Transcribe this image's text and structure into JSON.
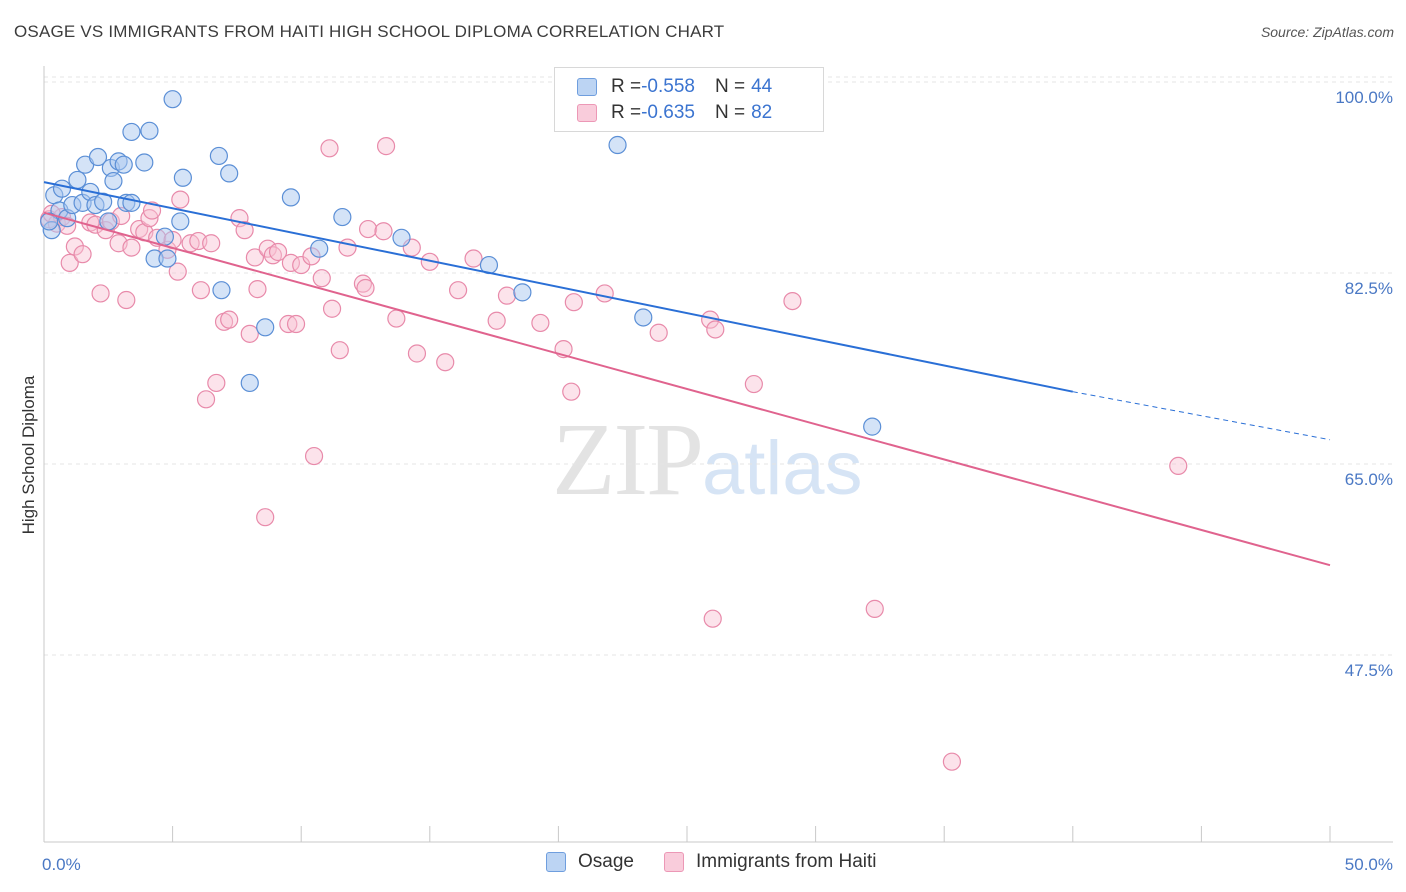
{
  "title": "OSAGE VS IMMIGRANTS FROM HAITI HIGH SCHOOL DIPLOMA CORRELATION CHART",
  "source": "Source: ZipAtlas.com",
  "watermark": {
    "zip": "ZIP",
    "atlas": "atlas"
  },
  "legend": {
    "rows": [
      {
        "r_label": "R = ",
        "r_value": "-0.558",
        "n_label": "N = ",
        "n_value": "44"
      },
      {
        "r_label": "R = ",
        "r_value": "-0.635",
        "n_label": "N = ",
        "n_value": "82"
      }
    ],
    "bottom": [
      "Osage",
      "Immigrants from Haiti"
    ]
  },
  "colors": {
    "osage_fill": "#a9c8f0",
    "osage_stroke": "#5b8fd6",
    "osage_line": "#2a6fd6",
    "haiti_fill": "#f8c0d2",
    "haiti_stroke": "#e88aaa",
    "haiti_line": "#e0638e",
    "tick_label": "#4a78c4"
  },
  "chart_data": {
    "type": "scatter",
    "title": "OSAGE VS IMMIGRANTS FROM HAITI HIGH SCHOOL DIPLOMA CORRELATION CHART",
    "xlabel": "",
    "ylabel": "High School Diploma",
    "xlim": [
      0,
      50
    ],
    "ylim": [
      30,
      100
    ],
    "x_tick_labels": [
      "0.0%",
      "50.0%"
    ],
    "y_ticks": [
      47.5,
      65.0,
      82.5,
      100.0
    ],
    "y_tick_labels": [
      "47.5%",
      "65.0%",
      "82.5%",
      "100.0%"
    ],
    "grid": "horizontal dashed",
    "legend_position": "top-center",
    "series": [
      {
        "name": "Osage",
        "r": -0.558,
        "n": 44,
        "trend": {
          "x": [
            0,
            40
          ],
          "y": [
            92.2,
            73.0
          ],
          "dashed_to": [
            50,
            68.6
          ]
        },
        "points": [
          [
            0.3,
            87.8
          ],
          [
            0.4,
            91.0
          ],
          [
            0.6,
            89.6
          ],
          [
            0.7,
            91.6
          ],
          [
            0.9,
            88.9
          ],
          [
            1.1,
            90.1
          ],
          [
            1.3,
            92.4
          ],
          [
            1.5,
            90.3
          ],
          [
            1.6,
            93.8
          ],
          [
            1.8,
            91.3
          ],
          [
            2.0,
            90.1
          ],
          [
            2.1,
            94.5
          ],
          [
            2.3,
            90.4
          ],
          [
            2.5,
            88.6
          ],
          [
            2.6,
            93.5
          ],
          [
            2.7,
            92.3
          ],
          [
            2.9,
            94.1
          ],
          [
            3.1,
            93.8
          ],
          [
            3.2,
            90.3
          ],
          [
            3.4,
            90.3
          ],
          [
            3.4,
            96.8
          ],
          [
            3.9,
            94.0
          ],
          [
            4.1,
            96.9
          ],
          [
            4.3,
            85.2
          ],
          [
            4.7,
            87.2
          ],
          [
            4.8,
            85.2
          ],
          [
            5.0,
            99.8
          ],
          [
            5.3,
            88.6
          ],
          [
            5.4,
            92.6
          ],
          [
            6.8,
            94.6
          ],
          [
            6.9,
            82.3
          ],
          [
            7.2,
            93.0
          ],
          [
            8.6,
            78.9
          ],
          [
            8.0,
            73.8
          ],
          [
            9.6,
            90.8
          ],
          [
            10.7,
            86.1
          ],
          [
            11.6,
            89.0
          ],
          [
            13.9,
            87.1
          ],
          [
            17.3,
            84.6
          ],
          [
            18.6,
            82.1
          ],
          [
            22.3,
            95.6
          ],
          [
            23.3,
            79.8
          ],
          [
            32.2,
            69.8
          ],
          [
            0.2,
            88.6
          ]
        ]
      },
      {
        "name": "Immigrants from Haiti",
        "r": -0.635,
        "n": 82,
        "trend": {
          "x": [
            0,
            50
          ],
          "y": [
            89.4,
            57.1
          ]
        },
        "points": [
          [
            0.2,
            88.8
          ],
          [
            0.5,
            88.4
          ],
          [
            0.7,
            89.0
          ],
          [
            0.9,
            88.2
          ],
          [
            1.0,
            84.8
          ],
          [
            1.2,
            86.3
          ],
          [
            1.5,
            85.6
          ],
          [
            1.8,
            88.5
          ],
          [
            2.0,
            88.3
          ],
          [
            2.2,
            82.0
          ],
          [
            2.4,
            87.8
          ],
          [
            2.6,
            88.6
          ],
          [
            2.9,
            86.6
          ],
          [
            3.0,
            89.1
          ],
          [
            3.2,
            81.4
          ],
          [
            3.4,
            86.2
          ],
          [
            3.7,
            87.9
          ],
          [
            3.9,
            87.6
          ],
          [
            4.1,
            88.9
          ],
          [
            4.2,
            89.6
          ],
          [
            4.4,
            87.1
          ],
          [
            4.8,
            86.0
          ],
          [
            5.0,
            86.9
          ],
          [
            5.2,
            84.0
          ],
          [
            5.3,
            90.6
          ],
          [
            5.7,
            86.6
          ],
          [
            6.0,
            86.8
          ],
          [
            6.1,
            82.3
          ],
          [
            6.3,
            72.3
          ],
          [
            6.5,
            86.6
          ],
          [
            6.7,
            73.8
          ],
          [
            7.0,
            79.4
          ],
          [
            7.2,
            79.6
          ],
          [
            7.6,
            88.9
          ],
          [
            7.8,
            87.8
          ],
          [
            8.0,
            78.3
          ],
          [
            8.2,
            85.3
          ],
          [
            8.3,
            82.4
          ],
          [
            8.7,
            86.1
          ],
          [
            8.9,
            85.5
          ],
          [
            9.1,
            85.8
          ],
          [
            9.5,
            79.2
          ],
          [
            9.6,
            84.8
          ],
          [
            9.8,
            79.2
          ],
          [
            10.0,
            84.6
          ],
          [
            10.4,
            85.4
          ],
          [
            10.5,
            67.1
          ],
          [
            10.8,
            83.4
          ],
          [
            11.1,
            95.3
          ],
          [
            11.2,
            80.6
          ],
          [
            11.5,
            76.8
          ],
          [
            11.8,
            86.2
          ],
          [
            12.4,
            82.9
          ],
          [
            12.5,
            82.5
          ],
          [
            12.6,
            87.9
          ],
          [
            13.2,
            87.7
          ],
          [
            13.3,
            95.5
          ],
          [
            13.7,
            79.7
          ],
          [
            14.3,
            86.2
          ],
          [
            14.5,
            76.5
          ],
          [
            15.0,
            84.9
          ],
          [
            15.6,
            75.7
          ],
          [
            16.1,
            82.3
          ],
          [
            16.7,
            85.2
          ],
          [
            17.6,
            79.5
          ],
          [
            18.0,
            81.8
          ],
          [
            19.3,
            79.3
          ],
          [
            20.2,
            76.9
          ],
          [
            20.5,
            73.0
          ],
          [
            20.6,
            81.2
          ],
          [
            21.8,
            82.0
          ],
          [
            23.9,
            78.4
          ],
          [
            25.9,
            79.6
          ],
          [
            26.1,
            78.7
          ],
          [
            27.6,
            73.7
          ],
          [
            29.1,
            81.3
          ],
          [
            8.6,
            61.5
          ],
          [
            26.0,
            52.2
          ],
          [
            32.3,
            53.1
          ],
          [
            35.3,
            39.1
          ],
          [
            44.1,
            66.2
          ],
          [
            0.3,
            89.3
          ]
        ]
      }
    ]
  }
}
